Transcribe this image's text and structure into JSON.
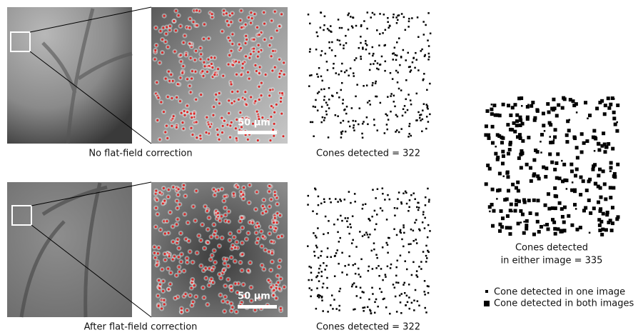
{
  "rows": [
    {
      "caption": "No flat-field correction",
      "scale_bar": "50 µm",
      "count_caption": "Cones detected = 322"
    },
    {
      "caption": "After flat-field correction",
      "scale_bar": "50 µm",
      "count_caption": "Cones detected = 322"
    }
  ],
  "merged": {
    "caption_lines": [
      "Cones detected",
      "in either image = 335"
    ]
  },
  "legend": [
    "Cone detected in one image",
    "Cone detected in both images"
  ]
}
